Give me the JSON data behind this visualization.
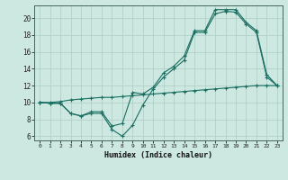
{
  "xlabel": "Humidex (Indice chaleur)",
  "bg_color": "#cce8e0",
  "grid_color": "#aaccc4",
  "line_color": "#1a6e62",
  "xlim": [
    -0.5,
    23.5
  ],
  "ylim": [
    5.5,
    21.5
  ],
  "xticks": [
    0,
    1,
    2,
    3,
    4,
    5,
    6,
    7,
    8,
    9,
    10,
    11,
    12,
    13,
    14,
    15,
    16,
    17,
    18,
    19,
    20,
    21,
    22,
    23
  ],
  "yticks": [
    6,
    8,
    10,
    12,
    14,
    16,
    18,
    20
  ],
  "series": {
    "line1": {
      "x": [
        0,
        1,
        2,
        3,
        4,
        5,
        6,
        7,
        8,
        9,
        10,
        11,
        12,
        13,
        14,
        15,
        16,
        17,
        18,
        19,
        20,
        21,
        22,
        23
      ],
      "y": [
        10.0,
        9.9,
        9.9,
        8.7,
        8.4,
        8.7,
        8.7,
        6.8,
        6.0,
        7.3,
        9.7,
        11.6,
        13.0,
        14.0,
        15.0,
        18.3,
        18.3,
        20.5,
        20.8,
        20.7,
        19.3,
        18.3,
        13.0,
        12.0
      ]
    },
    "line2": {
      "x": [
        0,
        1,
        2,
        3,
        4,
        5,
        6,
        7,
        8,
        9,
        10,
        11,
        12,
        13,
        14,
        15,
        16,
        17,
        18,
        19,
        20,
        21,
        22,
        23
      ],
      "y": [
        10.0,
        9.9,
        9.9,
        8.7,
        8.4,
        8.9,
        8.9,
        7.2,
        7.5,
        11.2,
        11.0,
        11.8,
        13.5,
        14.3,
        15.5,
        18.5,
        18.5,
        21.0,
        21.0,
        21.0,
        19.5,
        18.5,
        13.3,
        12.0
      ]
    },
    "line3": {
      "x": [
        0,
        1,
        2,
        3,
        4,
        5,
        6,
        7,
        8,
        9,
        10,
        11,
        12,
        13,
        14,
        15,
        16,
        17,
        18,
        19,
        20,
        21,
        22,
        23
      ],
      "y": [
        10.0,
        10.0,
        10.1,
        10.3,
        10.4,
        10.5,
        10.6,
        10.6,
        10.7,
        10.8,
        10.9,
        11.0,
        11.1,
        11.2,
        11.3,
        11.4,
        11.5,
        11.6,
        11.7,
        11.8,
        11.9,
        12.0,
        12.0,
        12.0
      ]
    }
  }
}
